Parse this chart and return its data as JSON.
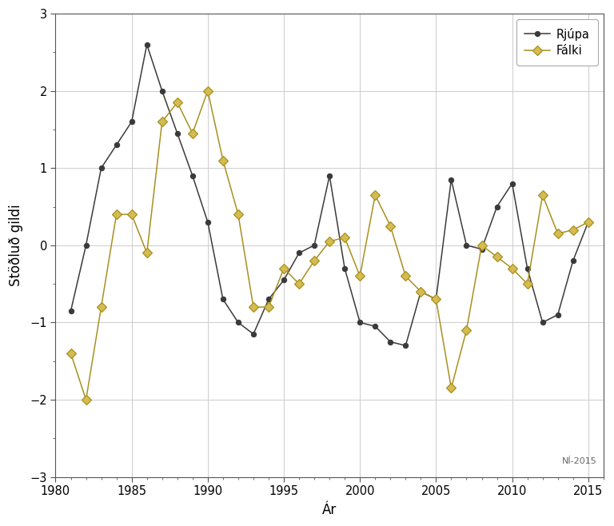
{
  "years": [
    1981,
    1982,
    1983,
    1984,
    1985,
    1986,
    1987,
    1988,
    1989,
    1990,
    1991,
    1992,
    1993,
    1994,
    1995,
    1996,
    1997,
    1998,
    1999,
    2000,
    2001,
    2002,
    2003,
    2004,
    2005,
    2006,
    2007,
    2008,
    2009,
    2010,
    2011,
    2012,
    2013,
    2014,
    2015
  ],
  "rjupa": [
    -0.85,
    0.0,
    1.0,
    1.3,
    1.6,
    2.6,
    2.0,
    1.45,
    0.9,
    0.3,
    -0.7,
    -1.0,
    -1.15,
    -0.7,
    -0.45,
    -0.1,
    0.0,
    0.9,
    -0.3,
    -1.0,
    -1.05,
    -1.25,
    -1.3,
    -0.6,
    -0.7,
    0.85,
    0.0,
    -0.05,
    0.5,
    0.8,
    -0.3,
    -1.0,
    -0.9,
    -0.2,
    0.3
  ],
  "falki": [
    -1.4,
    -2.0,
    -0.8,
    0.4,
    0.4,
    -0.1,
    1.6,
    1.85,
    1.45,
    2.0,
    1.1,
    0.4,
    -0.8,
    -0.8,
    -0.3,
    -0.5,
    -0.2,
    0.05,
    0.1,
    -0.4,
    0.65,
    0.25,
    -0.4,
    -0.6,
    -0.7,
    -1.85,
    -1.1,
    0.0,
    -0.15,
    -0.3,
    -0.5,
    0.65,
    0.15,
    0.2,
    0.3
  ],
  "rjupa_color": "#3a3a3a",
  "falki_color": "#a89020",
  "falki_marker_face": "#d4bc50",
  "xlabel": "Ár",
  "ylabel": "Stöðluð gildi",
  "xlim": [
    1980,
    2016
  ],
  "ylim": [
    -3,
    3
  ],
  "yticks": [
    -3,
    -2,
    -1,
    0,
    1,
    2,
    3
  ],
  "xticks": [
    1980,
    1985,
    1990,
    1995,
    2000,
    2005,
    2010,
    2015
  ],
  "grid_color": "#cccccc",
  "annotation": "NÍ-2015",
  "legend_rjupa": "Rjúpa",
  "legend_falki": "Fálki"
}
